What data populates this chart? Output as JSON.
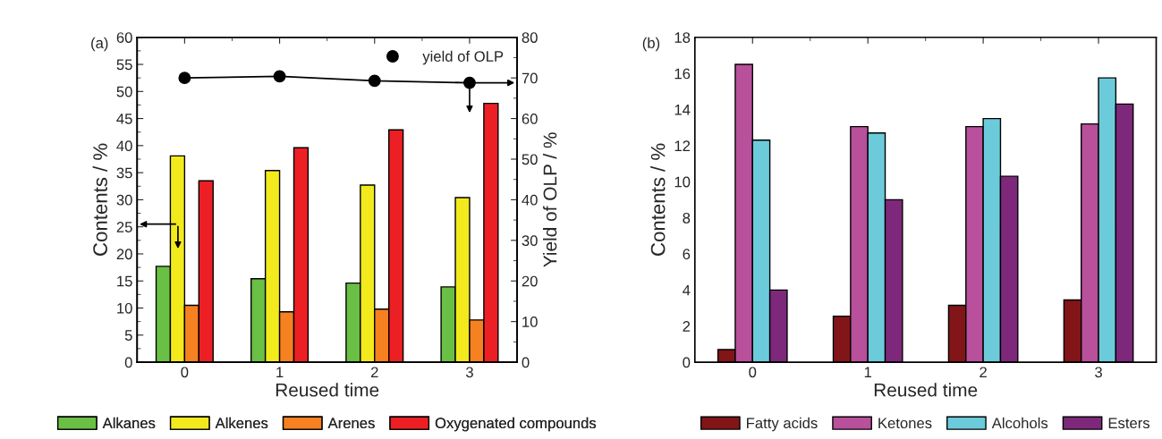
{
  "chart_data": [
    {
      "type": "bar",
      "annotations": [
        "(a)"
      ],
      "xlabel": "Reused time",
      "ylabel": "Contents / %",
      "y2label": "Yield of OLP / %",
      "categories": [
        "0",
        "1",
        "2",
        "3"
      ],
      "series": [
        {
          "name": "Alkanes",
          "color": "#6abf45",
          "values": [
            17.7,
            15.4,
            14.6,
            13.9
          ]
        },
        {
          "name": "Alkenes",
          "color": "#f2ea1c",
          "values": [
            38.1,
            35.4,
            32.7,
            30.4
          ]
        },
        {
          "name": "Arenes",
          "color": "#f68120",
          "values": [
            10.5,
            9.3,
            9.8,
            7.8
          ]
        },
        {
          "name": "Oxygenated compounds",
          "color": "#ec2024",
          "values": [
            33.5,
            39.6,
            42.9,
            47.8
          ]
        },
        {
          "name": "yield of OLP",
          "type": "line",
          "axis": "y2",
          "color": "#000000",
          "marker": "circle",
          "values": [
            70.0,
            70.4,
            69.3,
            68.8
          ]
        }
      ],
      "ylim": [
        0,
        60
      ],
      "yticks": [
        0,
        5,
        10,
        15,
        20,
        25,
        30,
        35,
        40,
        45,
        50,
        55,
        60
      ],
      "y2lim": [
        0,
        80
      ],
      "y2ticks": [
        0,
        10,
        20,
        30,
        40,
        50,
        60,
        70,
        80
      ],
      "grid": false,
      "legend": "bottom"
    },
    {
      "type": "bar",
      "annotations": [
        "(b)"
      ],
      "xlabel": "Reused time",
      "ylabel": "Contents / %",
      "categories": [
        "0",
        "1",
        "2",
        "3"
      ],
      "series": [
        {
          "name": "Fatty acids",
          "color": "#821518",
          "values": [
            0.7,
            2.55,
            3.15,
            3.45
          ]
        },
        {
          "name": "Ketones",
          "color": "#b8509b",
          "values": [
            16.5,
            13.05,
            13.05,
            13.2
          ]
        },
        {
          "name": "Alcohols",
          "color": "#6ccbdb",
          "values": [
            12.3,
            12.7,
            13.5,
            15.75
          ]
        },
        {
          "name": "Esters",
          "color": "#7d287a",
          "values": [
            4.0,
            9.0,
            10.3,
            14.3
          ]
        }
      ],
      "ylim": [
        0,
        18
      ],
      "yticks": [
        0,
        2,
        4,
        6,
        8,
        10,
        12,
        14,
        16,
        18
      ],
      "grid": false,
      "legend": "bottom"
    }
  ]
}
